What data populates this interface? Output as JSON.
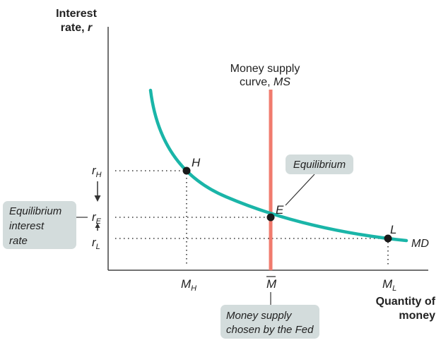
{
  "axes": {
    "y_title_line1": "Interest",
    "y_title_line2": "rate, ",
    "y_title_var": "r",
    "x_title_line1": "Quantity of",
    "x_title_line2": "money"
  },
  "ms_curve": {
    "label_line1": "Money supply",
    "label_line2": "curve, ",
    "label_var": "MS"
  },
  "md_curve": {
    "label": "MD"
  },
  "points": {
    "H": "H",
    "E": "E",
    "L": "L"
  },
  "y_ticks": {
    "rH": "r",
    "rH_sub": "H",
    "rE": "r",
    "rE_sub": "E",
    "rL": "r",
    "rL_sub": "L"
  },
  "x_ticks": {
    "MH": "M",
    "MH_sub": "H",
    "Mbar": "M",
    "ML": "M",
    "ML_sub": "L"
  },
  "callouts": {
    "equilibrium": "Equilibrium",
    "eq_interest_line1": "Equilibrium",
    "eq_interest_line2": "interest",
    "eq_interest_line3": "rate",
    "fed_line1": "Money supply",
    "fed_line2": "chosen by the Fed"
  },
  "colors": {
    "md_curve": "#1ab5a8",
    "ms_curve": "#f07b6e",
    "callout_box": "#d3dcdc",
    "point": "#1a1a1a"
  }
}
